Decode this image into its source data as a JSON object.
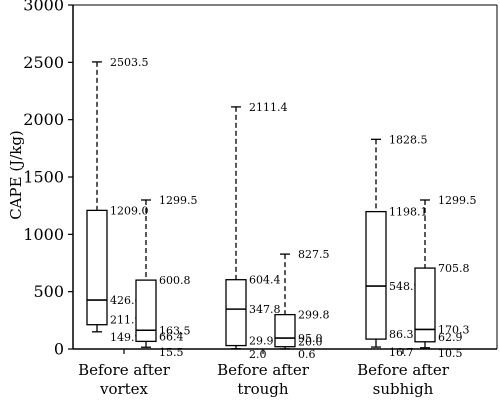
{
  "chart_data": {
    "type": "box",
    "title": "",
    "xlabel": "",
    "ylabel": "CAPE (J/kg)",
    "ylim": [
      0,
      3000
    ],
    "yticks": [
      0,
      500,
      1000,
      1500,
      2000,
      2500,
      3000
    ],
    "grid": false,
    "groups": [
      {
        "label_line1": "Before after",
        "label_line2": "vortex"
      },
      {
        "label_line1": "Before after",
        "label_line2": "trough"
      },
      {
        "label_line1": "Before after",
        "label_line2": "subhigh"
      }
    ],
    "boxes": [
      {
        "group": 0,
        "which": "before",
        "max": 2503.5,
        "q3": 1209.0,
        "median": 426.6,
        "q1": 211.9,
        "min": 149.9,
        "labels": {
          "max": "2503.5",
          "q3": "1209.0",
          "median": "426.6",
          "q1": "211.9",
          "min": "149.9"
        }
      },
      {
        "group": 0,
        "which": "after",
        "max": 1299.5,
        "q3": 600.8,
        "median": 163.5,
        "q1": 66.4,
        "min": 15.5,
        "labels": {
          "max": "1299.5",
          "q3": "600.8",
          "median": "163.5",
          "q1": "66.4",
          "min": "15.5"
        }
      },
      {
        "group": 1,
        "which": "before",
        "max": 2111.4,
        "q3": 604.4,
        "median": 347.8,
        "q1": 29.9,
        "min": 2.0,
        "labels": {
          "max": "2111.4",
          "q3": "604.4",
          "median": "347.8",
          "q1": "29.9",
          "min": "2.0"
        }
      },
      {
        "group": 1,
        "which": "after",
        "max": 827.5,
        "q3": 299.8,
        "median": 95.0,
        "q1": 20.0,
        "min": 0.6,
        "labels": {
          "max": "827.5",
          "q3": "299.8",
          "median": "95.0",
          "q1": "20.0",
          "min": "0.6"
        }
      },
      {
        "group": 2,
        "which": "before",
        "max": 1828.5,
        "q3": 1198.1,
        "median": 548.9,
        "q1": 86.3,
        "min": 16.7,
        "labels": {
          "max": "1828.5",
          "q3": "1198.1",
          "median": "548.9",
          "q1": "86.3",
          "min": "16.7"
        }
      },
      {
        "group": 2,
        "which": "after",
        "max": 1299.5,
        "q3": 705.8,
        "median": 170.3,
        "q1": 62.9,
        "min": 10.5,
        "labels": {
          "max": "1299.5",
          "q3": "705.8",
          "median": "170.3",
          "q1": "62.9",
          "min": "10.5"
        }
      }
    ]
  }
}
